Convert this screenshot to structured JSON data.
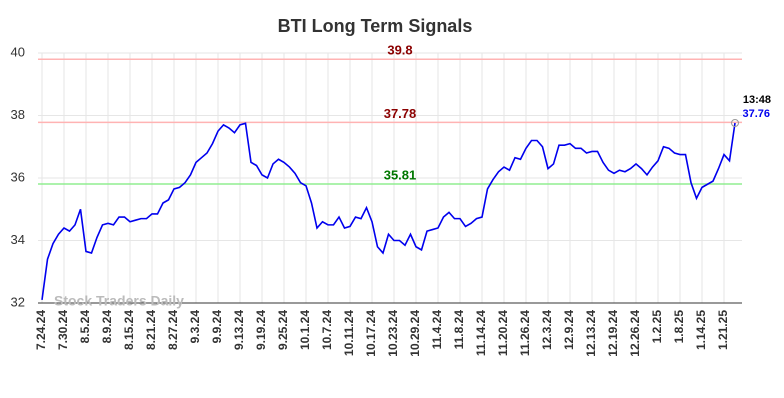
{
  "chart_data": {
    "type": "line",
    "title": "BTI Long Term Signals",
    "watermark": "Stock Traders Daily",
    "last_time": "13:48",
    "categories": [
      "7.24.24",
      null,
      null,
      null,
      "7.30.24",
      null,
      null,
      null,
      "8.5.24",
      null,
      null,
      null,
      "8.9.24",
      null,
      null,
      null,
      "8.15.24",
      null,
      null,
      null,
      "8.21.24",
      null,
      null,
      null,
      "8.27.24",
      null,
      null,
      null,
      "9.3.24",
      null,
      null,
      null,
      "9.9.24",
      null,
      null,
      null,
      "9.13.24",
      null,
      null,
      null,
      "9.19.24",
      null,
      null,
      null,
      "9.25.24",
      null,
      null,
      null,
      "10.1.24",
      null,
      null,
      null,
      "10.7.24",
      null,
      null,
      null,
      "10.11.24",
      null,
      null,
      null,
      "10.17.24",
      null,
      null,
      null,
      "10.23.24",
      null,
      null,
      null,
      "10.29.24",
      null,
      null,
      null,
      "11.4.24",
      null,
      null,
      null,
      "11.8.24",
      null,
      null,
      null,
      "11.14.24",
      null,
      null,
      null,
      "11.20.24",
      null,
      null,
      null,
      "11.26.24",
      null,
      null,
      null,
      "12.3.24",
      null,
      null,
      null,
      "12.9.24",
      null,
      null,
      null,
      "12.13.24",
      null,
      null,
      null,
      "12.19.24",
      null,
      null,
      null,
      "12.26.24",
      null,
      null,
      null,
      "1.2.25",
      null,
      null,
      null,
      "1.8.25",
      null,
      null,
      null,
      "1.14.25",
      null,
      null,
      null,
      "1.21.25",
      null,
      null
    ],
    "series": [
      {
        "color": "#0000ee",
        "values": [
          32.1,
          33.4,
          33.9,
          34.2,
          34.4,
          34.3,
          34.5,
          35.0,
          33.65,
          33.6,
          34.1,
          34.5,
          34.55,
          34.5,
          34.75,
          34.75,
          34.6,
          34.65,
          34.7,
          34.7,
          34.85,
          34.85,
          35.2,
          35.3,
          35.65,
          35.7,
          35.85,
          36.1,
          36.5,
          36.65,
          36.8,
          37.1,
          37.5,
          37.7,
          37.6,
          37.45,
          37.7,
          37.75,
          36.5,
          36.4,
          36.1,
          36.0,
          36.45,
          36.6,
          36.5,
          36.35,
          36.15,
          35.85,
          35.75,
          35.2,
          34.4,
          34.6,
          34.5,
          34.5,
          34.75,
          34.4,
          34.45,
          34.75,
          34.7,
          35.05,
          34.6,
          33.8,
          33.6,
          34.2,
          34.0,
          34.0,
          33.85,
          34.2,
          33.8,
          33.7,
          34.3,
          34.35,
          34.4,
          34.75,
          34.9,
          34.7,
          34.7,
          34.45,
          34.55,
          34.7,
          34.75,
          35.65,
          35.95,
          36.2,
          36.35,
          36.25,
          36.65,
          36.6,
          36.95,
          37.2,
          37.2,
          37.0,
          36.3,
          36.45,
          37.05,
          37.05,
          37.1,
          36.95,
          36.95,
          36.8,
          36.85,
          36.85,
          36.5,
          36.25,
          36.15,
          36.25,
          36.2,
          36.3,
          36.45,
          36.3,
          36.1,
          36.35,
          36.55,
          37.0,
          36.95,
          36.8,
          36.75,
          36.75,
          35.85,
          35.35,
          35.7,
          35.8,
          35.9,
          36.3,
          36.75,
          36.55,
          37.76
        ]
      }
    ],
    "hlines": [
      {
        "value": 39.8,
        "color": "#8b0000",
        "line_color": "#ffb3b3"
      },
      {
        "value": 37.78,
        "color": "#8b0000",
        "line_color": "#ffb3b3"
      },
      {
        "value": 35.81,
        "color": "#007700",
        "line_color": "#90ee90"
      }
    ],
    "ylim": [
      32,
      40
    ],
    "yticks": [
      32,
      34,
      36,
      38,
      40
    ],
    "grid": true
  }
}
